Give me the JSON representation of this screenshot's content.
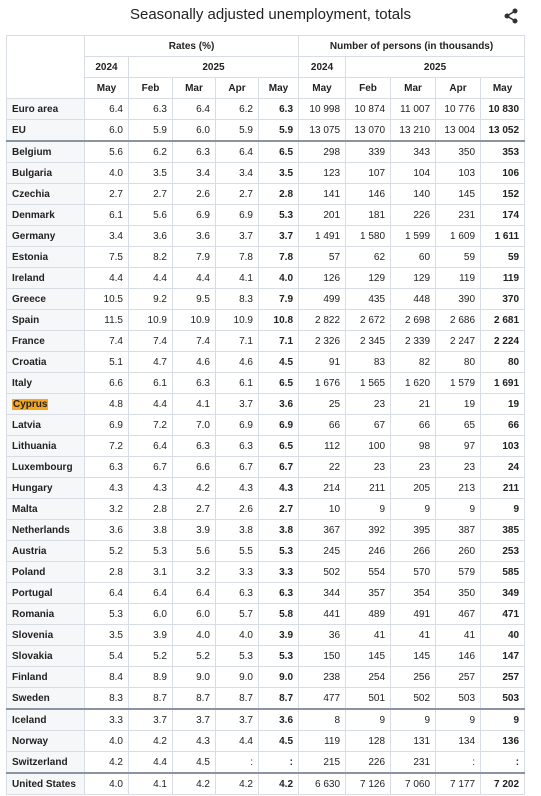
{
  "title": "Seasonally adjusted unemployment, totals",
  "header": {
    "rates": "Rates (%)",
    "persons": "Number of persons (in thousands)",
    "years": [
      "2024",
      "2025",
      "2024",
      "2025"
    ],
    "months": [
      "May",
      "Feb",
      "Mar",
      "Apr",
      "May",
      "May",
      "Feb",
      "Mar",
      "Apr",
      "May"
    ]
  },
  "table": {
    "rows": [
      [
        "Euro area",
        "6.4",
        "6.3",
        "6.4",
        "6.2",
        "6.3",
        "10 998",
        "10 874",
        "11 007",
        "10 776",
        "10 830"
      ],
      [
        "EU",
        "6.0",
        "5.9",
        "6.0",
        "5.9",
        "5.9",
        "13 075",
        "13 070",
        "13 210",
        "13 004",
        "13 052"
      ],
      [
        "Belgium",
        "5.6",
        "6.2",
        "6.3",
        "6.4",
        "6.5",
        "298",
        "339",
        "343",
        "350",
        "353"
      ],
      [
        "Bulgaria",
        "4.0",
        "3.5",
        "3.4",
        "3.4",
        "3.5",
        "123",
        "107",
        "104",
        "103",
        "106"
      ],
      [
        "Czechia",
        "2.7",
        "2.7",
        "2.6",
        "2.7",
        "2.8",
        "141",
        "146",
        "140",
        "145",
        "152"
      ],
      [
        "Denmark",
        "6.1",
        "5.6",
        "6.9",
        "6.9",
        "5.3",
        "201",
        "181",
        "226",
        "231",
        "174"
      ],
      [
        "Germany",
        "3.4",
        "3.6",
        "3.6",
        "3.7",
        "3.7",
        "1 491",
        "1 580",
        "1 599",
        "1 609",
        "1 611"
      ],
      [
        "Estonia",
        "7.5",
        "8.2",
        "7.9",
        "7.8",
        "7.8",
        "57",
        "62",
        "60",
        "59",
        "59"
      ],
      [
        "Ireland",
        "4.4",
        "4.4",
        "4.4",
        "4.1",
        "4.0",
        "126",
        "129",
        "129",
        "119",
        "119"
      ],
      [
        "Greece",
        "10.5",
        "9.2",
        "9.5",
        "8.3",
        "7.9",
        "499",
        "435",
        "448",
        "390",
        "370"
      ],
      [
        "Spain",
        "11.5",
        "10.9",
        "10.9",
        "10.9",
        "10.8",
        "2 822",
        "2 672",
        "2 698",
        "2 686",
        "2 681"
      ],
      [
        "France",
        "7.4",
        "7.4",
        "7.4",
        "7.1",
        "7.1",
        "2 326",
        "2 345",
        "2 339",
        "2 247",
        "2 224"
      ],
      [
        "Croatia",
        "5.1",
        "4.7",
        "4.6",
        "4.6",
        "4.5",
        "91",
        "83",
        "82",
        "80",
        "80"
      ],
      [
        "Italy",
        "6.6",
        "6.1",
        "6.3",
        "6.1",
        "6.5",
        "1 676",
        "1 565",
        "1 620",
        "1 579",
        "1 691"
      ],
      [
        "Cyprus",
        "4.8",
        "4.4",
        "4.1",
        "3.7",
        "3.6",
        "25",
        "23",
        "21",
        "19",
        "19"
      ],
      [
        "Latvia",
        "6.9",
        "7.2",
        "7.0",
        "6.9",
        "6.9",
        "66",
        "67",
        "66",
        "65",
        "66"
      ],
      [
        "Lithuania",
        "7.2",
        "6.4",
        "6.3",
        "6.3",
        "6.5",
        "112",
        "100",
        "98",
        "97",
        "103"
      ],
      [
        "Luxembourg",
        "6.3",
        "6.7",
        "6.6",
        "6.7",
        "6.7",
        "22",
        "23",
        "23",
        "23",
        "24"
      ],
      [
        "Hungary",
        "4.3",
        "4.3",
        "4.2",
        "4.3",
        "4.3",
        "214",
        "211",
        "205",
        "213",
        "211"
      ],
      [
        "Malta",
        "3.2",
        "2.8",
        "2.7",
        "2.6",
        "2.7",
        "10",
        "9",
        "9",
        "9",
        "9"
      ],
      [
        "Netherlands",
        "3.6",
        "3.8",
        "3.9",
        "3.8",
        "3.8",
        "367",
        "392",
        "395",
        "387",
        "385"
      ],
      [
        "Austria",
        "5.2",
        "5.3",
        "5.6",
        "5.5",
        "5.3",
        "245",
        "246",
        "266",
        "260",
        "253"
      ],
      [
        "Poland",
        "2.8",
        "3.1",
        "3.2",
        "3.3",
        "3.3",
        "502",
        "554",
        "570",
        "579",
        "585"
      ],
      [
        "Portugal",
        "6.4",
        "6.4",
        "6.4",
        "6.3",
        "6.3",
        "344",
        "357",
        "354",
        "350",
        "349"
      ],
      [
        "Romania",
        "5.3",
        "6.0",
        "6.0",
        "5.7",
        "5.8",
        "441",
        "489",
        "491",
        "467",
        "471"
      ],
      [
        "Slovenia",
        "3.5",
        "3.9",
        "4.0",
        "4.0",
        "3.9",
        "36",
        "41",
        "41",
        "41",
        "40"
      ],
      [
        "Slovakia",
        "5.4",
        "5.2",
        "5.2",
        "5.3",
        "5.3",
        "150",
        "145",
        "145",
        "146",
        "147"
      ],
      [
        "Finland",
        "8.4",
        "8.9",
        "9.0",
        "9.0",
        "9.0",
        "238",
        "254",
        "256",
        "257",
        "257"
      ],
      [
        "Sweden",
        "8.3",
        "8.7",
        "8.7",
        "8.7",
        "8.7",
        "477",
        "501",
        "502",
        "503",
        "503"
      ],
      [
        "Iceland",
        "3.3",
        "3.7",
        "3.7",
        "3.7",
        "3.6",
        "8",
        "9",
        "9",
        "9",
        "9"
      ],
      [
        "Norway",
        "4.0",
        "4.2",
        "4.3",
        "4.4",
        "4.5",
        "119",
        "128",
        "131",
        "134",
        "136"
      ],
      [
        "Switzerland",
        "4.2",
        "4.4",
        "4.5",
        ":",
        ":",
        "215",
        "226",
        "231",
        ":",
        ":"
      ],
      [
        "United States",
        "4.0",
        "4.1",
        "4.2",
        "4.2",
        "4.2",
        "6 630",
        "7 126",
        "7 060",
        "7 177",
        "7 202"
      ]
    ]
  }
}
